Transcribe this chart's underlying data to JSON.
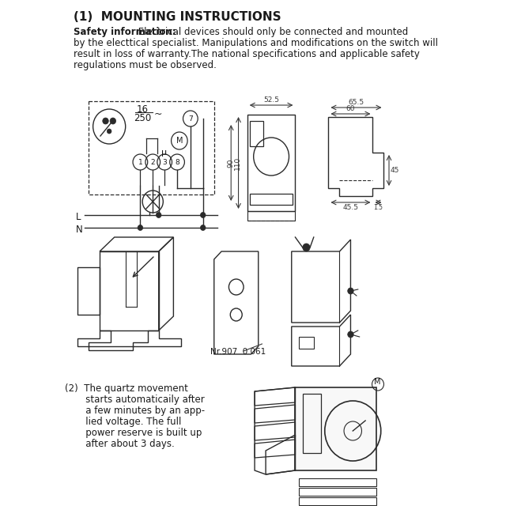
{
  "title": "(1)  MOUNTING INSTRUCTIONS",
  "safety_bold": "Safety information:",
  "safety_line1": " Electrical devices should only be connected and mounted",
  "safety_line2": "by the electtical specialist. Manipulations and modifications on the switch will",
  "safety_line3": "result in loss of warranty.The national specifications and applicable safety",
  "safety_line4": "regulations must be observed.",
  "section2_lines": [
    "(2)  The quartz movement",
    "       starts automaticaily after",
    "       a few minutes by an app-",
    "       lied voltage. The full",
    "       power reserve is built up",
    "       after about 3 days."
  ],
  "nr_label": "Nr.907  0 061",
  "bg_color": "#ffffff",
  "line_color": "#2a2a2a",
  "text_color": "#1a1a1a",
  "dim_color": "#3a3a3a",
  "title_fontsize": 11,
  "body_fontsize": 8.5
}
